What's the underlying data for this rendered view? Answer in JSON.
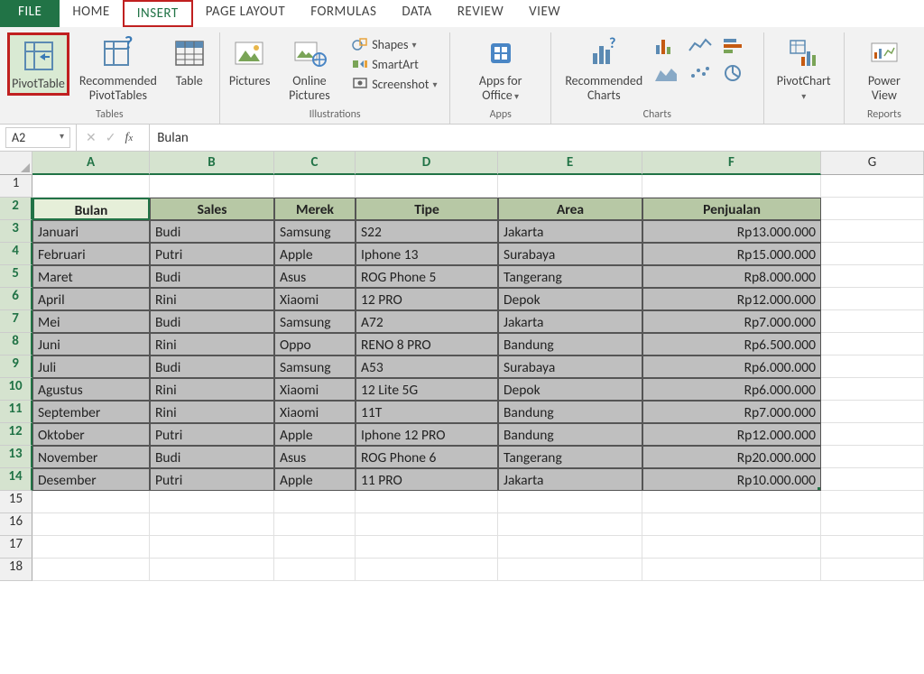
{
  "tabs": [
    "FILE",
    "HOME",
    "INSERT",
    "PAGE LAYOUT",
    "FORMULAS",
    "DATA",
    "REVIEW",
    "VIEW"
  ],
  "active_tab": "INSERT",
  "highlighted_tab": "INSERT",
  "highlighted_button": "PivotTable",
  "ribbon": {
    "groups": [
      {
        "name": "Tables",
        "buttons": [
          {
            "label": "PivotTable",
            "icon": "pivot",
            "highlight": true
          },
          {
            "label": "Recommended PivotTables",
            "icon": "pivotq"
          },
          {
            "label": "Table",
            "icon": "table"
          }
        ]
      },
      {
        "name": "Illustrations",
        "buttons": [
          {
            "label": "Pictures",
            "icon": "pic"
          },
          {
            "label": "Online Pictures",
            "icon": "opic"
          }
        ],
        "stack": [
          {
            "label": "Shapes",
            "icon": "shapes",
            "dd": true
          },
          {
            "label": "SmartArt",
            "icon": "smart"
          },
          {
            "label": "Screenshot",
            "icon": "screen",
            "dd": true
          }
        ]
      },
      {
        "name": "Apps",
        "buttons": [
          {
            "label": "Apps for Office",
            "icon": "apps",
            "dd": true
          }
        ]
      },
      {
        "name": "Charts",
        "buttons": [
          {
            "label": "Recommended Charts",
            "icon": "rchart"
          }
        ],
        "chartgrid": true
      },
      {
        "name": "",
        "buttons": [
          {
            "label": "PivotChart",
            "icon": "pchart",
            "dd": true
          }
        ]
      },
      {
        "name": "Reports",
        "buttons": [
          {
            "label": "Power View",
            "icon": "pview"
          }
        ]
      }
    ]
  },
  "namebox": "A2",
  "formula_value": "Bulan",
  "columns": [
    "A",
    "B",
    "C",
    "D",
    "E",
    "F",
    "G"
  ],
  "selected_columns": [
    "A",
    "B",
    "C",
    "D",
    "E",
    "F"
  ],
  "selected_rows": [
    2,
    3,
    4,
    5,
    6,
    7,
    8,
    9,
    10,
    11,
    12,
    13,
    14
  ],
  "table": {
    "header_row": 2,
    "active_cell": "A2",
    "headers": [
      "Bulan",
      "Sales",
      "Merek",
      "Tipe",
      "Area",
      "Penjualan"
    ],
    "rows": [
      [
        "Januari",
        "Budi",
        "Samsung",
        "S22",
        "Jakarta",
        "Rp13.000.000"
      ],
      [
        "Februari",
        "Putri",
        "Apple",
        "Iphone 13",
        "Surabaya",
        "Rp15.000.000"
      ],
      [
        "Maret",
        "Budi",
        "Asus",
        "ROG Phone 5",
        "Tangerang",
        "Rp8.000.000"
      ],
      [
        "April",
        "Rini",
        "Xiaomi",
        "12 PRO",
        "Depok",
        "Rp12.000.000"
      ],
      [
        "Mei",
        "Budi",
        "Samsung",
        "A72",
        "Jakarta",
        "Rp7.000.000"
      ],
      [
        "Juni",
        "Rini",
        "Oppo",
        "RENO 8 PRO",
        "Bandung",
        "Rp6.500.000"
      ],
      [
        "Juli",
        "Budi",
        "Samsung",
        "A53",
        "Surabaya",
        "Rp6.000.000"
      ],
      [
        "Agustus",
        "Rini",
        "Xiaomi",
        "12 Lite 5G",
        "Depok",
        "Rp6.000.000"
      ],
      [
        "September",
        "Rini",
        "Xiaomi",
        "11T",
        "Bandung",
        "Rp7.000.000"
      ],
      [
        "Oktober",
        "Putri",
        "Apple",
        "Iphone 12 PRO",
        "Bandung",
        "Rp12.000.000"
      ],
      [
        "November",
        "Budi",
        "Asus",
        "ROG Phone 6",
        "Tangerang",
        "Rp20.000.000"
      ],
      [
        "Desember",
        "Putri",
        "Apple",
        "11 PRO",
        "Jakarta",
        "Rp10.000.000"
      ]
    ]
  },
  "empty_rows_after": [
    15,
    16,
    17,
    18
  ],
  "colors": {
    "excel_green": "#217346",
    "highlight_red": "#c02020",
    "header_fill": "#b7c8a5",
    "active_header_fill": "#e6efd9",
    "data_fill": "#bfbfbf",
    "ribbon_bg": "#f2f2f2"
  }
}
